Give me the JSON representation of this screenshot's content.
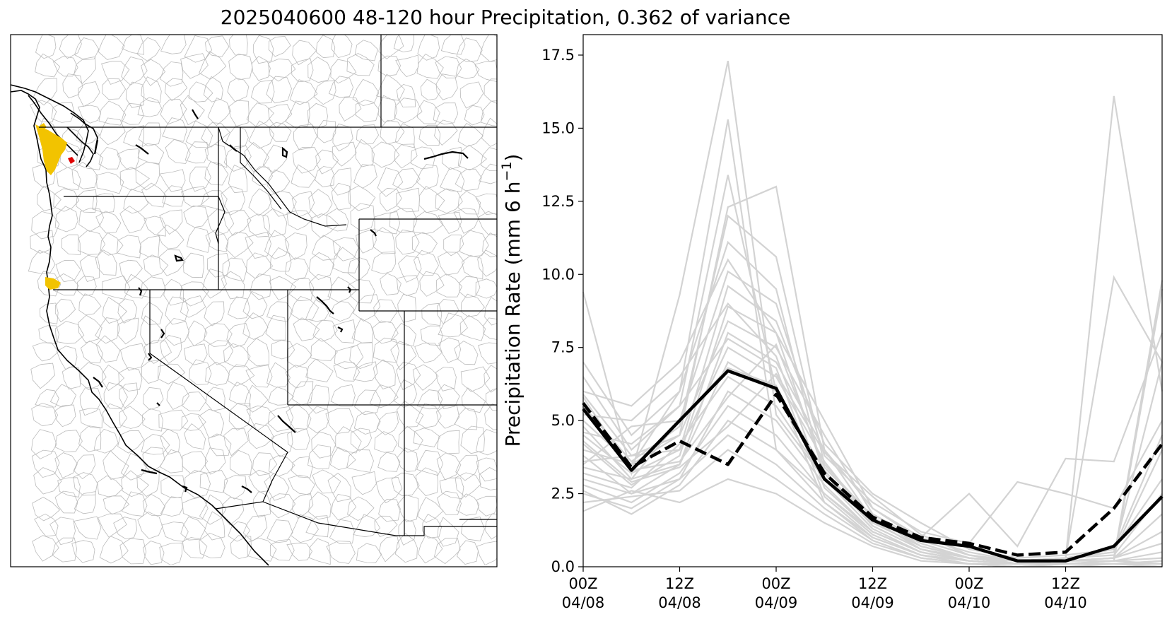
{
  "title": "2025040600 48-120 hour Precipitation, 0.362 of variance",
  "map": {
    "highlight_color": "#f2c300",
    "highlight_color_2": "#e00000",
    "border_color": "#000000",
    "basin_color": "#bbbbbb"
  },
  "chart_data": {
    "type": "line",
    "title": "2025040600 48-120 hour Precipitation, 0.362 of variance",
    "xlabel": "",
    "ylabel": "Precipitation Rate (mm 6 h",
    "ylabel_exp": "−1",
    "ylabel_close": ")",
    "ylim": [
      0,
      18.2
    ],
    "xlim": [
      0,
      18
    ],
    "yticks": [
      0.0,
      2.5,
      5.0,
      7.5,
      10.0,
      12.5,
      15.0,
      17.5
    ],
    "ytick_labels": [
      "0.0",
      "2.5",
      "5.0",
      "7.5",
      "10.0",
      "12.5",
      "15.0",
      "17.5"
    ],
    "xticks": [
      0,
      3,
      6,
      9,
      12,
      15
    ],
    "xtick_labels": [
      [
        "00Z",
        "04/08"
      ],
      [
        "12Z",
        "04/08"
      ],
      [
        "00Z",
        "04/09"
      ],
      [
        "12Z",
        "04/09"
      ],
      [
        "00Z",
        "04/10"
      ],
      [
        "12Z",
        "04/10"
      ]
    ],
    "x": [
      0,
      1.5,
      3,
      4.5,
      6,
      7.5,
      9,
      10.5,
      12,
      13.5,
      15,
      16.5,
      18
    ],
    "grid": false,
    "legend": "none",
    "ensemble_color": "#d3d3d3",
    "members": [
      [
        9.4,
        3.2,
        9.3,
        17.3,
        5.2,
        3.0,
        1.6,
        0.6,
        0.3,
        0.1,
        0.3,
        0.5,
        7.0
      ],
      [
        7.0,
        4.5,
        6.0,
        15.3,
        4.0,
        2.5,
        1.2,
        0.5,
        0.2,
        0.1,
        0.2,
        0.3,
        9.8
      ],
      [
        6.5,
        4.0,
        5.5,
        13.4,
        6.0,
        3.0,
        1.8,
        0.8,
        0.3,
        0.1,
        0.2,
        0.2,
        9.5
      ],
      [
        5.9,
        3.8,
        4.5,
        12.3,
        13.0,
        4.0,
        2.0,
        0.9,
        0.4,
        0.2,
        0.3,
        16.1,
        6.0
      ],
      [
        5.5,
        3.6,
        4.8,
        12.0,
        10.6,
        3.5,
        1.7,
        0.7,
        0.3,
        0.2,
        0.3,
        9.9,
        7.0
      ],
      [
        5.0,
        3.5,
        6.0,
        11.1,
        9.5,
        3.0,
        1.5,
        1.0,
        2.5,
        0.7,
        3.7,
        3.6,
        8.0
      ],
      [
        4.8,
        3.0,
        5.0,
        10.1,
        9.0,
        3.8,
        2.2,
        1.2,
        0.8,
        2.9,
        2.5,
        2.0,
        5.0
      ],
      [
        4.5,
        3.2,
        4.0,
        9.6,
        8.4,
        4.2,
        2.5,
        1.5,
        0.6,
        0.3,
        0.4,
        0.6,
        4.5
      ],
      [
        4.2,
        2.8,
        3.8,
        8.9,
        8.0,
        5.0,
        2.0,
        1.0,
        0.5,
        0.2,
        0.3,
        0.5,
        4.0
      ],
      [
        4.0,
        3.5,
        4.5,
        8.4,
        7.5,
        4.5,
        1.8,
        0.9,
        0.4,
        0.2,
        0.3,
        0.6,
        3.0
      ],
      [
        3.8,
        2.5,
        3.5,
        8.0,
        7.0,
        4.0,
        1.6,
        0.8,
        0.3,
        0.2,
        0.3,
        0.4,
        2.5
      ],
      [
        3.6,
        3.8,
        4.0,
        7.5,
        6.5,
        3.6,
        1.5,
        0.7,
        0.3,
        0.1,
        0.2,
        0.3,
        1.8
      ],
      [
        3.4,
        3.0,
        3.5,
        7.0,
        6.0,
        3.3,
        1.4,
        0.6,
        0.2,
        0.1,
        0.2,
        0.3,
        1.2
      ],
      [
        3.2,
        2.7,
        4.2,
        6.5,
        5.5,
        3.0,
        1.3,
        0.5,
        0.2,
        0.1,
        0.2,
        0.3,
        0.8
      ],
      [
        3.0,
        2.5,
        3.0,
        6.0,
        5.0,
        2.8,
        1.2,
        0.5,
        0.2,
        0.1,
        0.1,
        0.2,
        0.5
      ],
      [
        2.8,
        2.2,
        3.2,
        5.5,
        4.5,
        2.5,
        1.1,
        0.4,
        0.2,
        0.1,
        0.1,
        0.2,
        0.3
      ],
      [
        2.6,
        1.8,
        2.8,
        5.0,
        4.0,
        2.2,
        1.0,
        0.4,
        0.1,
        0.1,
        0.1,
        0.1,
        0.2
      ],
      [
        2.5,
        2.0,
        3.0,
        4.5,
        3.5,
        2.0,
        0.9,
        0.3,
        0.1,
        0.0,
        0.1,
        0.1,
        0.1
      ],
      [
        2.2,
        2.4,
        2.6,
        4.0,
        3.0,
        1.8,
        0.8,
        0.3,
        0.1,
        0.0,
        0.0,
        0.1,
        0.1
      ],
      [
        1.9,
        2.6,
        2.2,
        3.0,
        2.5,
        1.5,
        0.7,
        0.2,
        0.1,
        0.0,
        0.0,
        0.0,
        0.0
      ],
      [
        6.0,
        5.5,
        7.0,
        10.5,
        8.0,
        3.2,
        1.4,
        0.6,
        0.3,
        0.1,
        0.1,
        0.1,
        0.2
      ],
      [
        5.2,
        5.0,
        6.5,
        9.0,
        7.2,
        2.7,
        1.2,
        0.5,
        0.2,
        0.1,
        0.1,
        0.1,
        0.1
      ],
      [
        4.6,
        4.2,
        5.5,
        7.8,
        6.8,
        2.4,
        1.0,
        0.4,
        0.2,
        0.1,
        0.1,
        0.1,
        0.1
      ],
      [
        3.5,
        4.8,
        5.0,
        6.8,
        6.2,
        2.2,
        0.9,
        0.3,
        0.1,
        0.0,
        0.1,
        0.1,
        0.0
      ],
      [
        5.8,
        3.3,
        3.6,
        5.8,
        7.6,
        3.4,
        1.7,
        0.7,
        0.3,
        0.1,
        0.1,
        0.2,
        0.1
      ],
      [
        4.3,
        2.9,
        3.4,
        4.8,
        6.6,
        3.9,
        2.4,
        1.1,
        0.4,
        0.1,
        0.1,
        0.1,
        0.0
      ]
    ],
    "series": [
      {
        "style": "solid",
        "color": "#000000",
        "values": [
          5.4,
          3.3,
          5.0,
          6.7,
          6.1,
          3.0,
          1.6,
          0.9,
          0.7,
          0.2,
          0.2,
          0.7,
          2.4
        ]
      },
      {
        "style": "dashed",
        "color": "#000000",
        "values": [
          5.6,
          3.4,
          4.3,
          3.5,
          5.9,
          3.2,
          1.7,
          1.0,
          0.8,
          0.4,
          0.5,
          2.0,
          4.2
        ]
      }
    ]
  }
}
